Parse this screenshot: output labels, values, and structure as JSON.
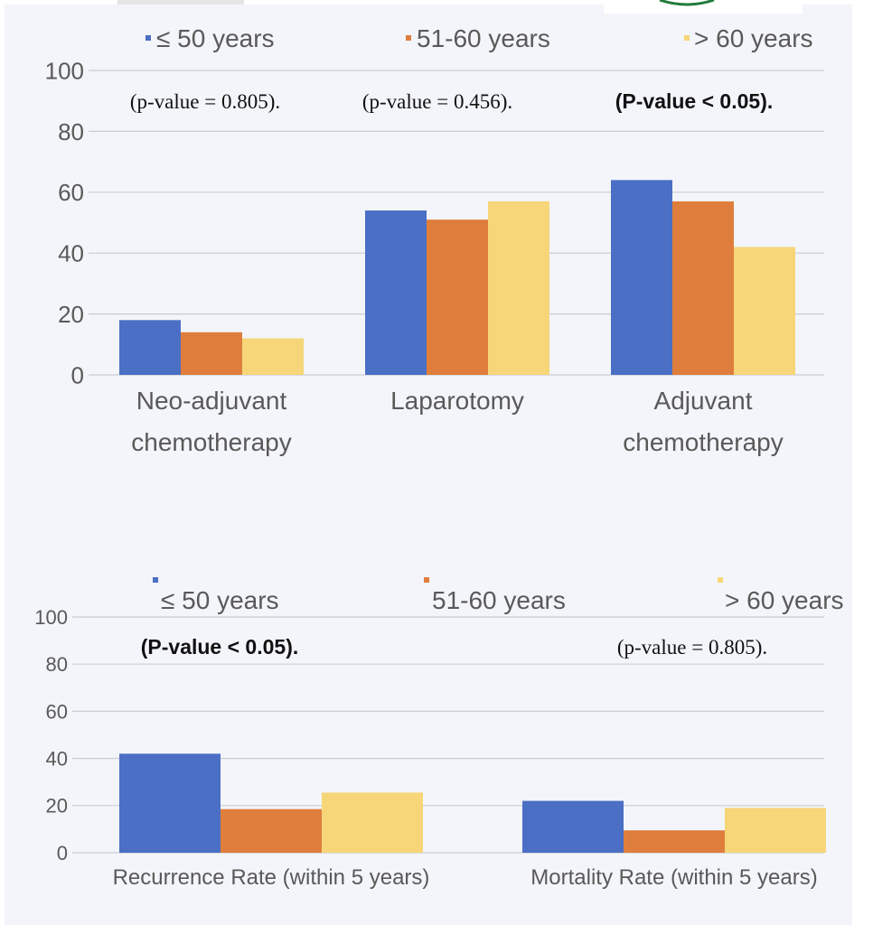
{
  "colors": {
    "series1": "#4a6fc4",
    "series2": "#df7e3c",
    "series3": "#f6d678",
    "significant": "#e03a2e",
    "normal_text": "#111111"
  },
  "chart_data": [
    {
      "type": "bar",
      "title": "",
      "xlabel": "",
      "ylabel": "",
      "ylim": [
        0,
        100
      ],
      "yticks": [
        0,
        20,
        40,
        60,
        80,
        100
      ],
      "grid": true,
      "legend_position": "top",
      "categories": [
        [
          "Neo-adjuvant",
          "chemotherapy"
        ],
        [
          "Laparotomy"
        ],
        [
          "Adjuvant",
          "chemotherapy"
        ]
      ],
      "series": [
        {
          "name": "≤ 50 years",
          "values": [
            18,
            54,
            64
          ]
        },
        {
          "name": "51-60 years",
          "values": [
            14,
            51,
            57
          ]
        },
        {
          "name": "> 60 years",
          "values": [
            12,
            57,
            42
          ]
        }
      ],
      "annotations": [
        {
          "text": "(p-value = 0.805).",
          "category": 0,
          "significant": false
        },
        {
          "text": "(p-value = 0.456).",
          "category": 1,
          "significant": false
        },
        {
          "text": "(P-value < 0.05).",
          "category": 2,
          "significant": true
        }
      ]
    },
    {
      "type": "bar",
      "title": "",
      "xlabel": "",
      "ylabel": "",
      "ylim": [
        0,
        100
      ],
      "yticks": [
        0,
        20,
        40,
        60,
        80,
        100
      ],
      "grid": true,
      "legend_position": "top",
      "categories": [
        [
          "Recurrence Rate (within 5 years)"
        ],
        [
          "Mortality Rate (within 5 years)"
        ]
      ],
      "series": [
        {
          "name": "≤ 50 years",
          "values": [
            42,
            22
          ]
        },
        {
          "name": "51-60 years",
          "values": [
            18.5,
            9.5
          ]
        },
        {
          "name": "> 60 years",
          "values": [
            25.5,
            19
          ]
        }
      ],
      "annotations": [
        {
          "text": "(P-value < 0.05).",
          "category": 0,
          "significant": true
        },
        {
          "text": "(p-value = 0.805).",
          "category": 1,
          "significant": false
        }
      ]
    }
  ]
}
